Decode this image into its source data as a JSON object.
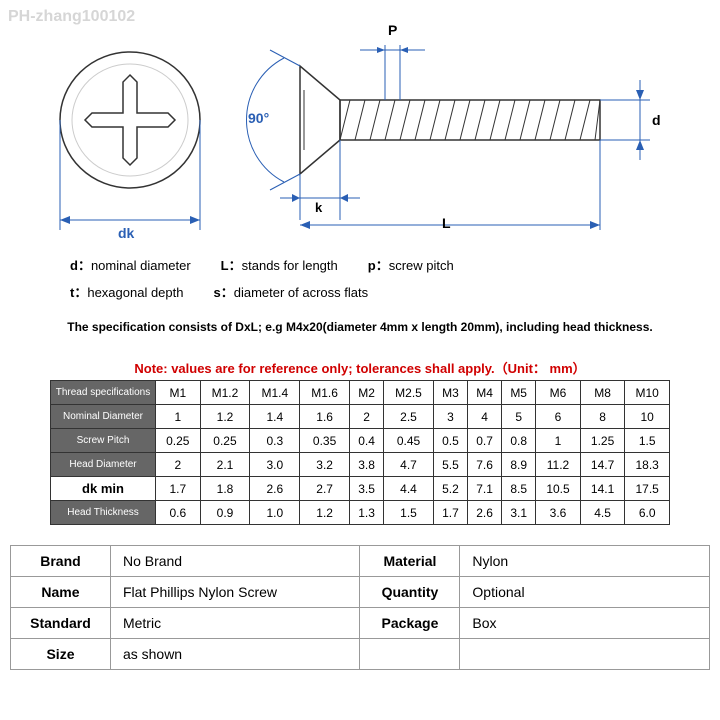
{
  "watermark": "PH-zhang100102",
  "diagram": {
    "labels": {
      "dk": "dk",
      "angle": "90°",
      "P": "P",
      "d": "d",
      "L": "L",
      "k": "k"
    }
  },
  "legend": {
    "d": {
      "sym": "d：",
      "text": "nominal diameter"
    },
    "L": {
      "sym": "L：",
      "text": "stands for length"
    },
    "p": {
      "sym": "p：",
      "text": "screw pitch"
    },
    "t": {
      "sym": "t：",
      "text": "hexagonal depth"
    },
    "s": {
      "sym": "s：",
      "text": "diameter of across flats"
    }
  },
  "spec_line": "The specification consists of DxL; e.g M4x20(diameter 4mm x length 20mm), including head thickness.",
  "note_line": "Note: values are for reference only; tolerances shall apply.（Unit： mm）",
  "spec_table": {
    "rows": [
      {
        "head": "Thread specifications",
        "cells": [
          "M1",
          "M1.2",
          "M1.4",
          "M1.6",
          "M2",
          "M2.5",
          "M3",
          "M4",
          "M5",
          "M6",
          "M8",
          "M10"
        ]
      },
      {
        "head": "Nominal Diameter",
        "cells": [
          "1",
          "1.2",
          "1.4",
          "1.6",
          "2",
          "2.5",
          "3",
          "4",
          "5",
          "6",
          "8",
          "10"
        ]
      },
      {
        "head": "Screw Pitch",
        "cells": [
          "0.25",
          "0.25",
          "0.3",
          "0.35",
          "0.4",
          "0.45",
          "0.5",
          "0.7",
          "0.8",
          "1",
          "1.25",
          "1.5"
        ]
      },
      {
        "head": "Head Diameter",
        "cells": [
          "2",
          "2.1",
          "3.0",
          "3.2",
          "3.8",
          "4.7",
          "5.5",
          "7.6",
          "8.9",
          "11.2",
          "14.7",
          "18.3"
        ]
      },
      {
        "head": "dk      min",
        "cells": [
          "1.7",
          "1.8",
          "2.6",
          "2.7",
          "3.5",
          "4.4",
          "5.2",
          "7.1",
          "8.5",
          "10.5",
          "14.1",
          "17.5"
        ],
        "dk": true
      },
      {
        "head": "Head Thickness",
        "cells": [
          "0.6",
          "0.9",
          "1.0",
          "1.2",
          "1.3",
          "1.5",
          "1.7",
          "2.6",
          "3.1",
          "3.6",
          "4.5",
          "6.0"
        ]
      }
    ]
  },
  "prop_table": {
    "rows": [
      [
        {
          "label": "Brand",
          "val": "No Brand"
        },
        {
          "label": "Material",
          "val": "Nylon"
        }
      ],
      [
        {
          "label": "Name",
          "val": "Flat Phillips Nylon Screw"
        },
        {
          "label": "Quantity",
          "val": "Optional"
        }
      ],
      [
        {
          "label": "Standard",
          "val": "Metric"
        },
        {
          "label": "Package",
          "val": "Box"
        }
      ],
      [
        {
          "label": "Size",
          "val": "as shown"
        },
        null
      ]
    ]
  }
}
